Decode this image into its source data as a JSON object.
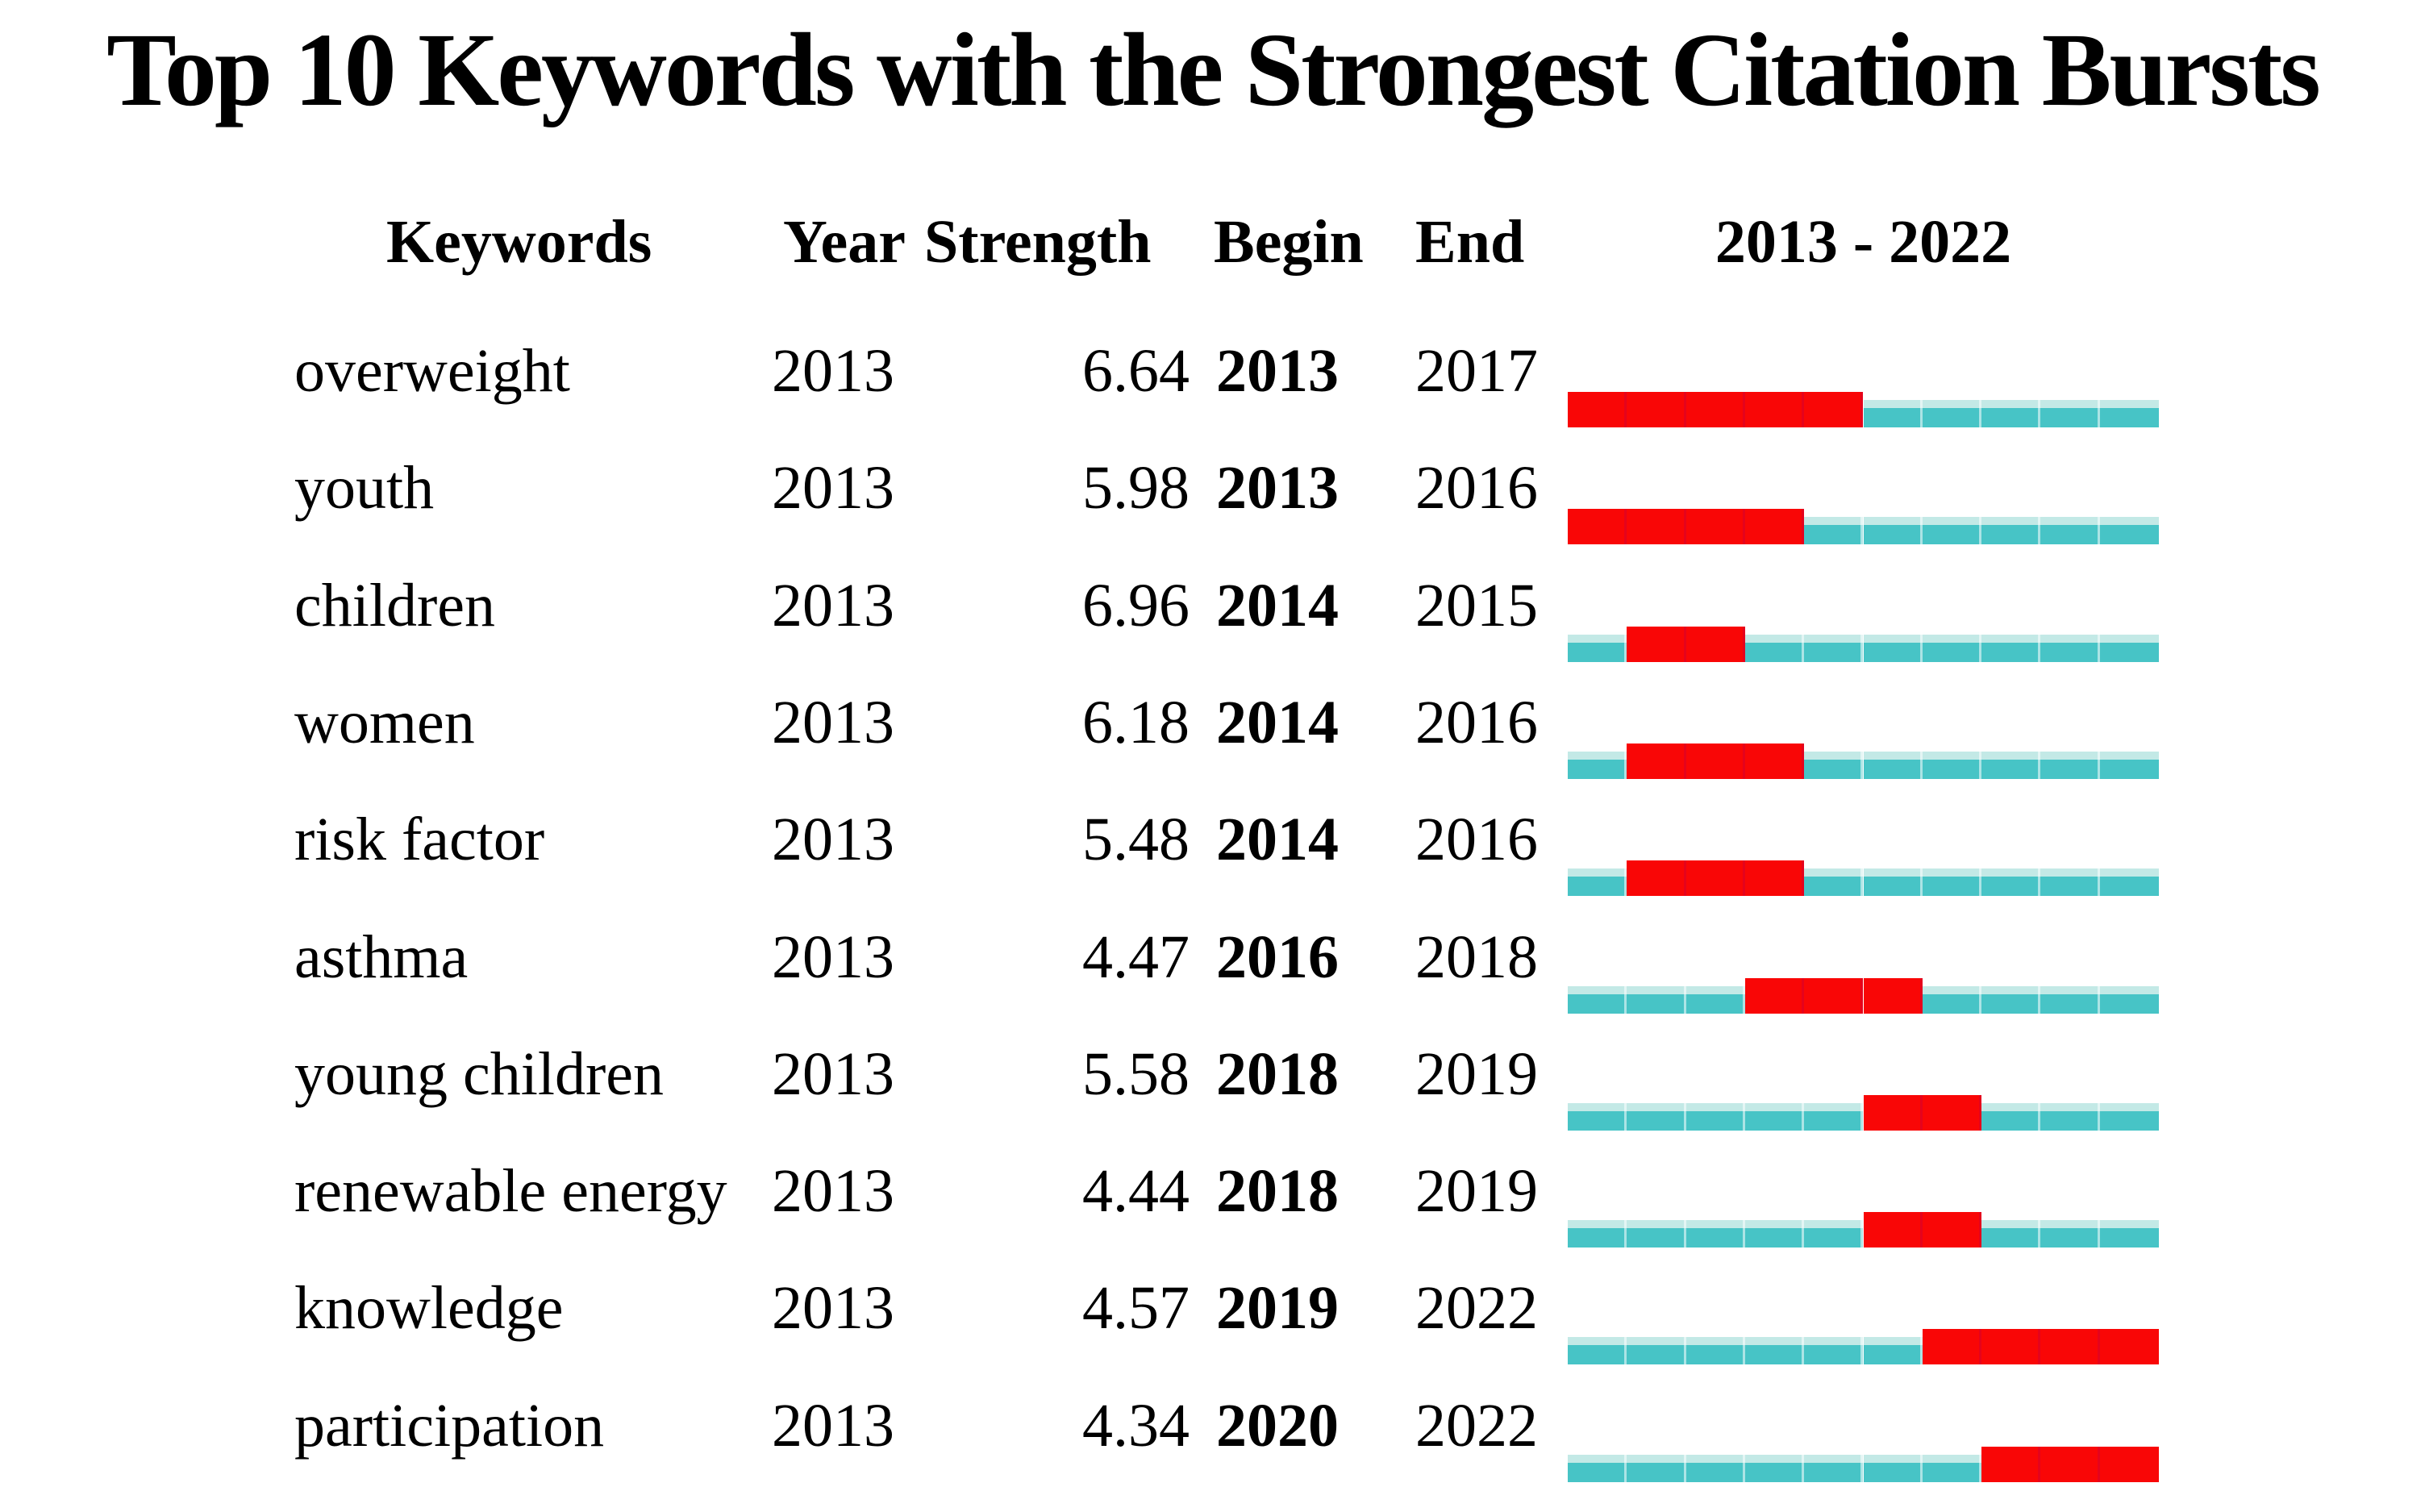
{
  "title": "Top 10 Keywords with the Strongest Citation Bursts",
  "columns": {
    "keywords": "Keywords",
    "year": "Year",
    "strength": "Strength",
    "begin": "Begin",
    "end": "End",
    "period": "2013 - 2022"
  },
  "colors": {
    "burst_red": "#f90606",
    "timeline_teal": "#47c4c6",
    "timeline_teal_light": "#c3e9e6",
    "text": "#000000",
    "background": "#ffffff"
  },
  "chart_data": {
    "type": "table",
    "title": "Top 10 Keywords with the Strongest Citation Bursts",
    "columns": [
      "Keywords",
      "Year",
      "Strength",
      "Begin",
      "End",
      "2013 - 2022"
    ],
    "timeline_start": 2013,
    "timeline_end": 2022,
    "burst_color": "#f90606",
    "timeline_color": "#47c4c6",
    "rows": [
      {
        "keyword": "overweight",
        "year": 2013,
        "strength": 6.64,
        "begin": 2013,
        "end": 2017
      },
      {
        "keyword": "youth",
        "year": 2013,
        "strength": 5.98,
        "begin": 2013,
        "end": 2016
      },
      {
        "keyword": "children",
        "year": 2013,
        "strength": 6.96,
        "begin": 2014,
        "end": 2015
      },
      {
        "keyword": "women",
        "year": 2013,
        "strength": 6.18,
        "begin": 2014,
        "end": 2016
      },
      {
        "keyword": "risk factor",
        "year": 2013,
        "strength": 5.48,
        "begin": 2014,
        "end": 2016
      },
      {
        "keyword": "asthma",
        "year": 2013,
        "strength": 4.47,
        "begin": 2016,
        "end": 2018
      },
      {
        "keyword": "young children",
        "year": 2013,
        "strength": 5.58,
        "begin": 2018,
        "end": 2019
      },
      {
        "keyword": "renewable energy",
        "year": 2013,
        "strength": 4.44,
        "begin": 2018,
        "end": 2019
      },
      {
        "keyword": "knowledge",
        "year": 2013,
        "strength": 4.57,
        "begin": 2019,
        "end": 2022
      },
      {
        "keyword": "participation",
        "year": 2013,
        "strength": 4.34,
        "begin": 2020,
        "end": 2022
      }
    ]
  }
}
